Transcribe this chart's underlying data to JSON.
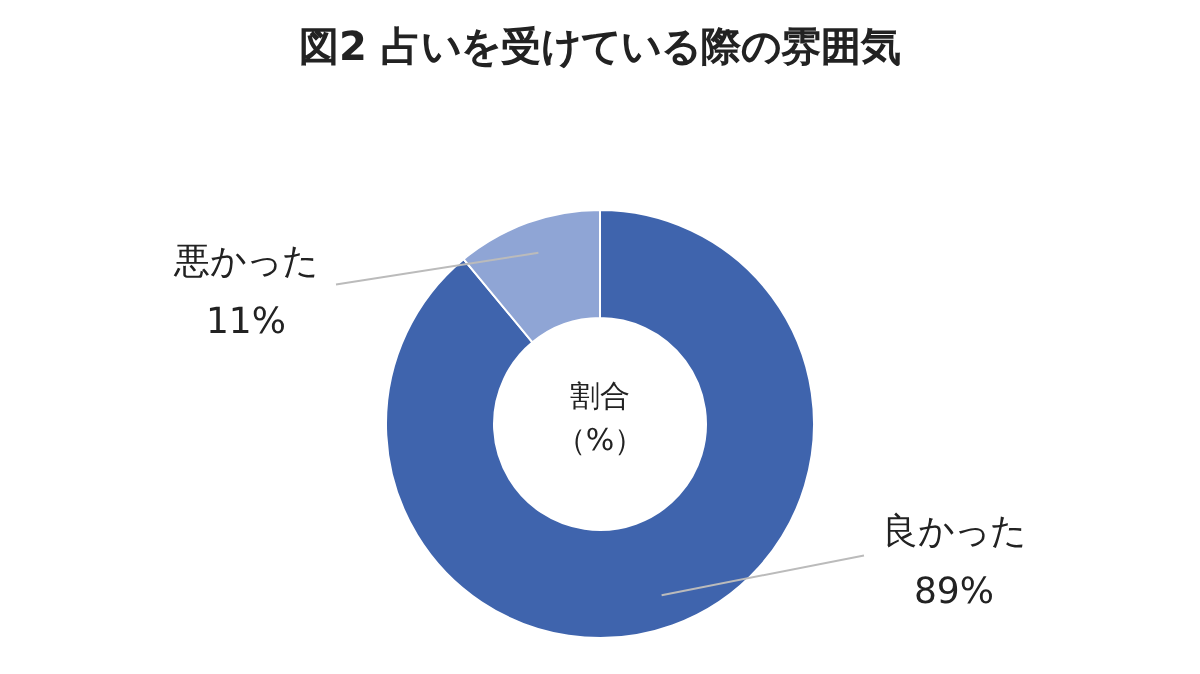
{
  "chart_data": {
    "type": "donut",
    "title": "図2 占いを受けている際の雰囲気",
    "categories": [
      "良かった",
      "悪かった"
    ],
    "values": [
      89,
      11
    ],
    "colors": [
      "#3f64ad",
      "#8fa5d5"
    ],
    "value_labels": [
      "89%",
      "11%"
    ],
    "annotations": [
      "割合",
      "（%）"
    ]
  }
}
